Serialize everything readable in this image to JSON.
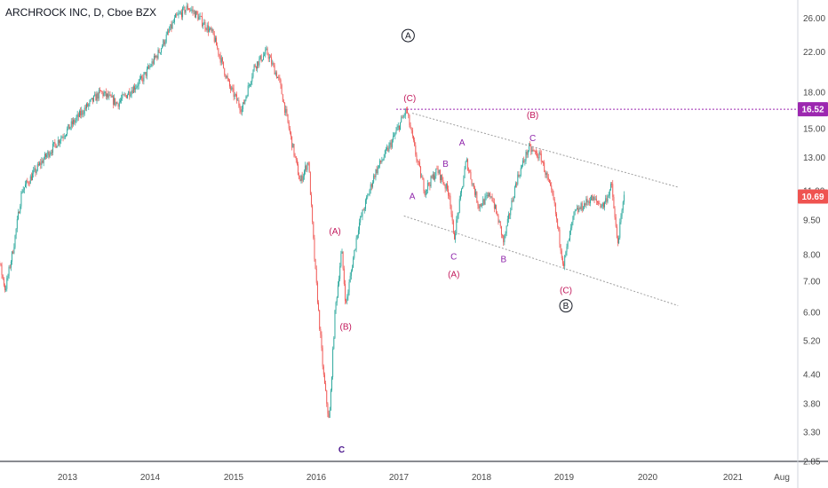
{
  "header": {
    "title": "ARCHROCK INC, D, Cboe BZX"
  },
  "colors": {
    "up": "#26a69a",
    "down": "#ef5350",
    "level": "#9c27b0",
    "price_badge": "#ef5350",
    "level_badge": "#9c27b0",
    "wave_red": "#c2185b",
    "wave_purple": "#8e24aa",
    "channel": "#9e9e9e"
  },
  "chart_data": {
    "type": "candlestick",
    "scale": "log",
    "ylim": [
      2.85,
      28.5
    ],
    "y_ticks": [
      "26.00",
      "22.00",
      "18.00",
      "15.00",
      "13.00",
      "11.00",
      "9.50",
      "8.00",
      "7.00",
      "6.00",
      "5.20",
      "4.40",
      "3.80",
      "3.30",
      "2.85"
    ],
    "x_ticks": [
      "2013",
      "2014",
      "2015",
      "2016",
      "2017",
      "2018",
      "2019",
      "2020",
      "2021",
      "Aug"
    ],
    "current_price": "10.69",
    "horizontal_level": "16.52",
    "price_path": [
      {
        "date": "2012.0",
        "price": 9.0
      },
      {
        "date": "2012.15",
        "price": 8.2
      },
      {
        "date": "2012.25",
        "price": 6.7
      },
      {
        "date": "2012.35",
        "price": 8.3
      },
      {
        "date": "2012.45",
        "price": 11.0
      },
      {
        "date": "2012.7",
        "price": 12.8
      },
      {
        "date": "2012.9",
        "price": 14.2
      },
      {
        "date": "2013.2",
        "price": 16.5
      },
      {
        "date": "2013.4",
        "price": 18.0
      },
      {
        "date": "2013.6",
        "price": 17.0
      },
      {
        "date": "2013.9",
        "price": 19.2
      },
      {
        "date": "2014.1",
        "price": 22.0
      },
      {
        "date": "2014.3",
        "price": 26.0
      },
      {
        "date": "2014.45",
        "price": 27.5
      },
      {
        "date": "2014.55",
        "price": 26.5
      },
      {
        "date": "2014.75",
        "price": 24.0
      },
      {
        "date": "2014.95",
        "price": 18.5
      },
      {
        "date": "2015.1",
        "price": 16.5
      },
      {
        "date": "2015.25",
        "price": 20.5
      },
      {
        "date": "2015.4",
        "price": 22.0
      },
      {
        "date": "2015.55",
        "price": 19.0
      },
      {
        "date": "2015.7",
        "price": 14.0
      },
      {
        "date": "2015.8",
        "price": 11.5
      },
      {
        "date": "2015.9",
        "price": 12.8
      },
      {
        "date": "2015.98",
        "price": 7.5
      },
      {
        "date": "2016.08",
        "price": 4.4
      },
      {
        "date": "2016.15",
        "price": 3.45
      },
      {
        "date": "2016.22",
        "price": 6.0
      },
      {
        "date": "2016.3",
        "price": 8.2
      },
      {
        "date": "2016.35",
        "price": 6.2
      },
      {
        "date": "2016.5",
        "price": 9.2
      },
      {
        "date": "2016.7",
        "price": 12.0
      },
      {
        "date": "2016.9",
        "price": 14.0
      },
      {
        "date": "2017.08",
        "price": 16.5
      },
      {
        "date": "2017.2",
        "price": 13.0
      },
      {
        "date": "2017.3",
        "price": 11.0
      },
      {
        "date": "2017.45",
        "price": 12.2
      },
      {
        "date": "2017.6",
        "price": 10.8
      },
      {
        "date": "2017.65",
        "price": 8.6
      },
      {
        "date": "2017.8",
        "price": 12.8
      },
      {
        "date": "2017.95",
        "price": 10.2
      },
      {
        "date": "2018.1",
        "price": 10.8
      },
      {
        "date": "2018.2",
        "price": 9.3
      },
      {
        "date": "2018.25",
        "price": 8.5
      },
      {
        "date": "2018.4",
        "price": 11.5
      },
      {
        "date": "2018.55",
        "price": 13.6
      },
      {
        "date": "2018.7",
        "price": 13.0
      },
      {
        "date": "2018.85",
        "price": 10.5
      },
      {
        "date": "2018.97",
        "price": 7.6
      },
      {
        "date": "2019.1",
        "price": 9.8
      },
      {
        "date": "2019.3",
        "price": 10.6
      },
      {
        "date": "2019.45",
        "price": 10.2
      },
      {
        "date": "2019.55",
        "price": 11.3
      },
      {
        "date": "2019.62",
        "price": 8.4
      },
      {
        "date": "2019.7",
        "price": 10.69
      }
    ],
    "channel": {
      "upper": [
        {
          "date": "2017.15",
          "price": 16.2
        },
        {
          "date": "2020.35",
          "price": 11.2
        }
      ],
      "lower": [
        {
          "date": "2017.05",
          "price": 9.7
        },
        {
          "date": "2020.35",
          "price": 6.2
        }
      ]
    },
    "wave_labels": [
      {
        "text": "A",
        "circled": true,
        "date": "2017.1",
        "price": 23.5,
        "color": "#131722"
      },
      {
        "text": "(C)",
        "circled": false,
        "date": "2017.12",
        "price": 17.2,
        "color": "#c2185b"
      },
      {
        "text": "(B)",
        "circled": false,
        "date": "2018.6",
        "price": 15.8,
        "color": "#c2185b"
      },
      {
        "text": "C",
        "circled": false,
        "date": "2018.6",
        "price": 14.1,
        "color": "#8e24aa"
      },
      {
        "text": "A",
        "circled": false,
        "date": "2017.75",
        "price": 13.8,
        "color": "#8e24aa"
      },
      {
        "text": "B",
        "circled": false,
        "date": "2017.55",
        "price": 12.4,
        "color": "#8e24aa"
      },
      {
        "text": "A",
        "circled": false,
        "date": "2017.15",
        "price": 10.55,
        "color": "#8e24aa"
      },
      {
        "text": "(A)",
        "circled": false,
        "date": "2016.22",
        "price": 8.85,
        "color": "#c2185b"
      },
      {
        "text": "C",
        "circled": false,
        "date": "2017.65",
        "price": 7.8,
        "color": "#8e24aa"
      },
      {
        "text": "(A)",
        "circled": false,
        "date": "2017.65",
        "price": 7.15,
        "color": "#c2185b"
      },
      {
        "text": "B",
        "circled": false,
        "date": "2018.25",
        "price": 7.7,
        "color": "#8e24aa"
      },
      {
        "text": "(C)",
        "circled": false,
        "date": "2019.0",
        "price": 6.6,
        "color": "#c2185b"
      },
      {
        "text": "B",
        "circled": true,
        "date": "2019.0",
        "price": 6.1,
        "color": "#131722"
      },
      {
        "text": "(B)",
        "circled": false,
        "date": "2016.35",
        "price": 5.5,
        "color": "#c2185b"
      },
      {
        "text": "C",
        "circled": false,
        "date": "2016.3",
        "price": 2.98,
        "color": "#4a148c"
      }
    ]
  }
}
